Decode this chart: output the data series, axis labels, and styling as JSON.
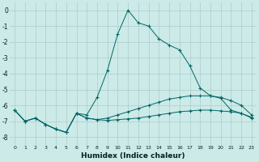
{
  "xlabel": "Humidex (Indice chaleur)",
  "background_color": "#cceae7",
  "grid_color": "#aacccc",
  "line_color": "#006666",
  "xlim": [
    -0.5,
    23.5
  ],
  "ylim": [
    -8.5,
    0.5
  ],
  "yticks": [
    0,
    -1,
    -2,
    -3,
    -4,
    -5,
    -6,
    -7,
    -8
  ],
  "xticks": [
    0,
    1,
    2,
    3,
    4,
    5,
    6,
    7,
    8,
    9,
    10,
    11,
    12,
    13,
    14,
    15,
    16,
    17,
    18,
    19,
    20,
    21,
    22,
    23
  ],
  "series": [
    {
      "x": [
        0,
        1,
        2,
        3,
        4,
        5,
        6,
        7,
        8,
        9,
        10,
        11,
        12,
        13,
        14,
        15,
        16,
        17,
        18,
        19,
        20,
        21,
        22,
        23
      ],
      "y": [
        -6.3,
        -7.0,
        -6.8,
        -7.2,
        -7.5,
        -7.7,
        -6.5,
        -6.6,
        -5.5,
        -3.8,
        -1.5,
        0.0,
        -0.8,
        -1.0,
        -1.8,
        -2.2,
        -2.5,
        -3.5,
        -4.9,
        -5.4,
        -5.55,
        -6.3,
        -6.5,
        -6.8
      ]
    },
    {
      "x": [
        0,
        1,
        2,
        3,
        4,
        5,
        6,
        7,
        8,
        9,
        10,
        11,
        12,
        13,
        14,
        15,
        16,
        17,
        18,
        19,
        20,
        21,
        22,
        23
      ],
      "y": [
        -6.3,
        -7.0,
        -6.8,
        -7.2,
        -7.5,
        -7.7,
        -6.5,
        -6.8,
        -6.9,
        -6.8,
        -6.6,
        -6.4,
        -6.2,
        -6.0,
        -5.8,
        -5.6,
        -5.5,
        -5.4,
        -5.4,
        -5.4,
        -5.5,
        -5.7,
        -6.0,
        -6.6
      ]
    },
    {
      "x": [
        0,
        1,
        2,
        3,
        4,
        5,
        6,
        7,
        8,
        9,
        10,
        11,
        12,
        13,
        14,
        15,
        16,
        17,
        18,
        19,
        20,
        21,
        22,
        23
      ],
      "y": [
        -6.3,
        -7.0,
        -6.8,
        -7.2,
        -7.5,
        -7.7,
        -6.5,
        -6.8,
        -6.9,
        -6.95,
        -6.9,
        -6.85,
        -6.8,
        -6.7,
        -6.6,
        -6.5,
        -6.4,
        -6.35,
        -6.3,
        -6.3,
        -6.35,
        -6.4,
        -6.5,
        -6.75
      ]
    }
  ]
}
